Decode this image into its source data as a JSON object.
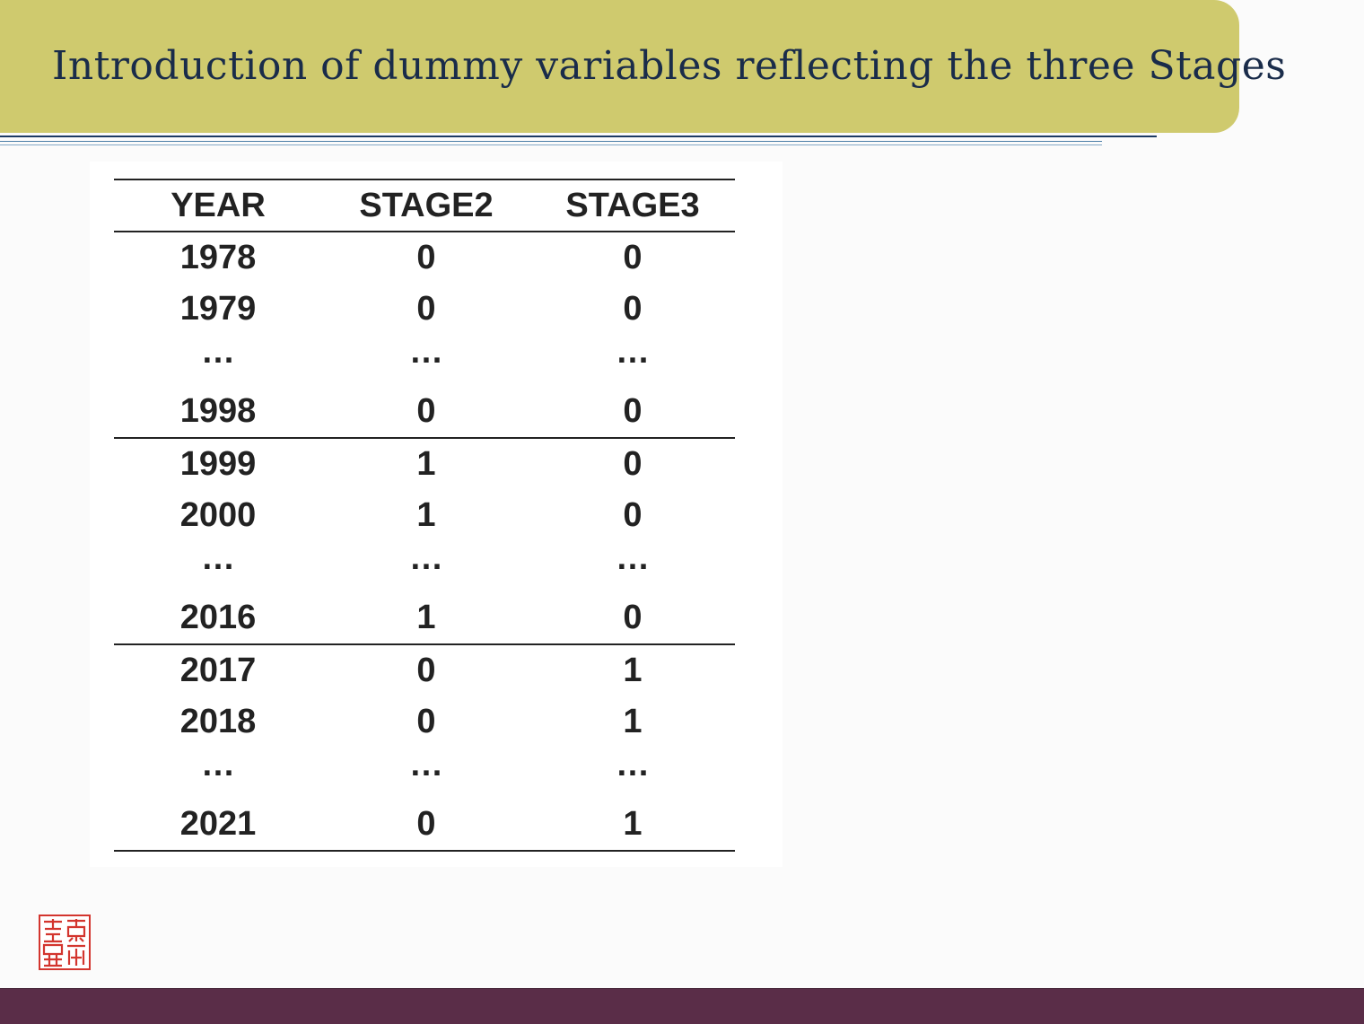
{
  "slide": {
    "title": "Introduction of dummy variables reflecting the three Stages"
  },
  "table": {
    "headers": [
      "YEAR",
      "STAGE2",
      "STAGE3"
    ],
    "rows": [
      [
        "1978",
        "0",
        "0"
      ],
      [
        "1979",
        "0",
        "0"
      ],
      [
        "…",
        "…",
        "…"
      ],
      [
        "1998",
        "0",
        "0"
      ],
      [
        "1999",
        "1",
        "0"
      ],
      [
        "2000",
        "1",
        "0"
      ],
      [
        "…",
        "…",
        "…"
      ],
      [
        "2016",
        "1",
        "0"
      ],
      [
        "2017",
        "0",
        "1"
      ],
      [
        "2018",
        "0",
        "1"
      ],
      [
        "…",
        "…",
        "…"
      ],
      [
        "2021",
        "0",
        "1"
      ]
    ]
  },
  "colors": {
    "title_bar": "#cfca6e",
    "title_text": "#1a2c4a",
    "footer_bar": "#5a2d48",
    "seal": "#d3352e"
  },
  "icons": {
    "seal": "red-seal-icon"
  }
}
